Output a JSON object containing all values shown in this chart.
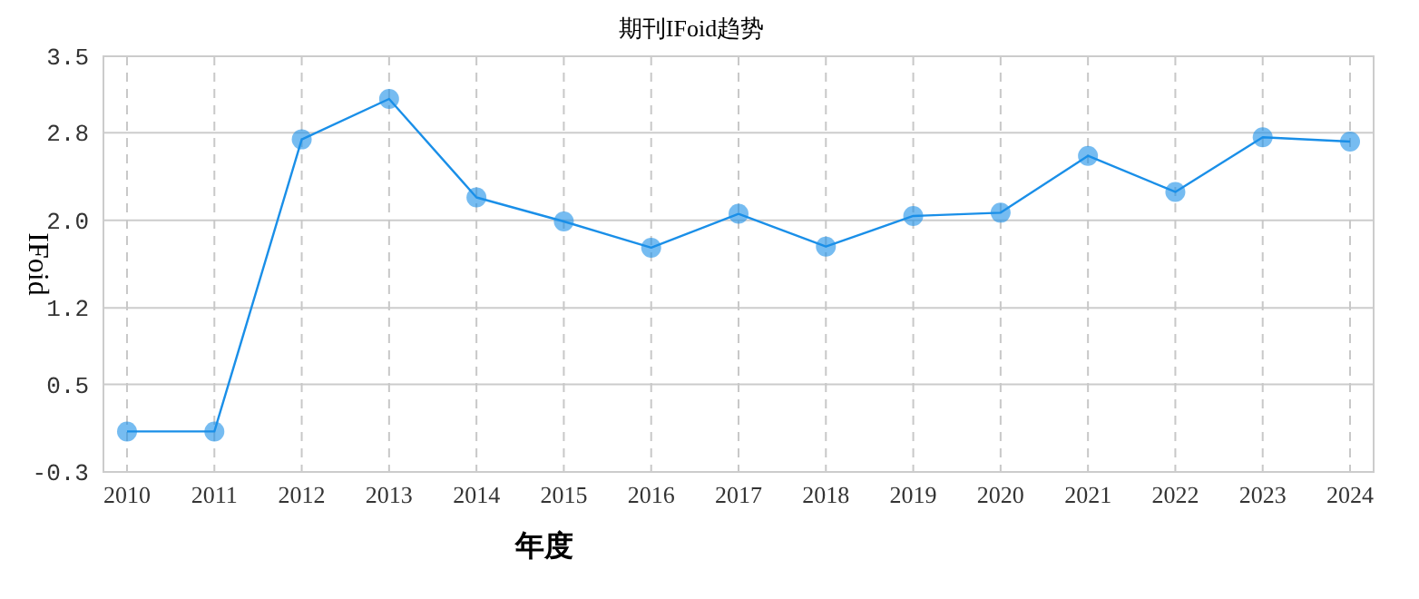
{
  "chart_data": {
    "type": "line",
    "title": "期刊IFoid趋势",
    "xlabel": "年度",
    "ylabel": "IFoid",
    "categories": [
      "2010",
      "2011",
      "2012",
      "2013",
      "2014",
      "2015",
      "2016",
      "2017",
      "2018",
      "2019",
      "2020",
      "2021",
      "2022",
      "2023",
      "2024"
    ],
    "series": [
      {
        "color": "#1a8fe8",
        "values": [
          0.07,
          0.07,
          2.74,
          3.11,
          2.21,
          1.99,
          1.75,
          2.06,
          1.76,
          2.04,
          2.07,
          2.59,
          2.26,
          2.76,
          2.72
        ]
      }
    ],
    "ylim": [
      -0.3,
      3.5
    ],
    "yticks": [
      -0.3,
      0.5,
      {
        "value": 1.2,
        "label": "1.2"
      },
      {
        "value": 2.0,
        "label": "2.0"
      },
      {
        "value": 2.8,
        "label": "2.8"
      },
      3.5
    ],
    "grid": true,
    "marker": "circle",
    "line_style": "solid"
  }
}
